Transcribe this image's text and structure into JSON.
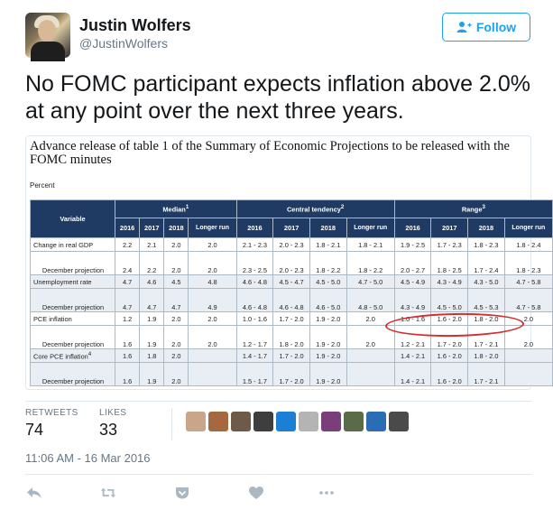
{
  "user": {
    "name": "Justin Wolfers",
    "handle": "@JustinWolfers"
  },
  "follow": {
    "label": "Follow",
    "icon": "follow-person-plus-icon",
    "color": "#1da1f2"
  },
  "tweet": {
    "text": "No FOMC participant expects inflation above 2.0% at any point over the next three years."
  },
  "embed": {
    "title": "Advance release of table 1 of the Summary of Economic Projections to be released with the FOMC minutes",
    "percent_label": "Percent",
    "header_color": "#1f3b63",
    "table": {
      "variable_header": "Variable",
      "groups": [
        "Median",
        "Central tendency",
        "Range"
      ],
      "group_sups": [
        "1",
        "2",
        "3"
      ],
      "years": [
        "2016",
        "2017",
        "2018",
        "Longer run"
      ],
      "rows": [
        {
          "label": "Change in real GDP",
          "vals": [
            "2.2",
            "2.1",
            "2.0",
            "2.0",
            "2.1 - 2.3",
            "2.0 - 2.3",
            "1.8 - 2.1",
            "1.8 - 2.1",
            "1.9 - 2.5",
            "1.7 - 2.3",
            "1.8 - 2.3",
            "1.8 - 2.4"
          ]
        },
        {
          "label": "December projection",
          "vals": [
            "2.4",
            "2.2",
            "2.0",
            "2.0",
            "2.3 - 2.5",
            "2.0 - 2.3",
            "1.8 - 2.2",
            "1.8 - 2.2",
            "2.0 - 2.7",
            "1.8 - 2.5",
            "1.7 - 2.4",
            "1.8 - 2.3"
          ]
        },
        {
          "label": "Unemployment rate",
          "vals": [
            "4.7",
            "4.6",
            "4.5",
            "4.8",
            "4.6 - 4.8",
            "4.5 - 4.7",
            "4.5 - 5.0",
            "4.7 - 5.0",
            "4.5 - 4.9",
            "4.3 - 4.9",
            "4.3 - 5.0",
            "4.7 - 5.8"
          ]
        },
        {
          "label": "December projection",
          "vals": [
            "4.7",
            "4.7",
            "4.7",
            "4.9",
            "4.6 - 4.8",
            "4.6 - 4.8",
            "4.6 - 5.0",
            "4.8 - 5.0",
            "4.3 - 4.9",
            "4.5 - 5.0",
            "4.5 - 5.3",
            "4.7 - 5.8"
          ]
        },
        {
          "label": "PCE inflation",
          "vals": [
            "1.2",
            "1.9",
            "2.0",
            "2.0",
            "1.0 - 1.6",
            "1.7 - 2.0",
            "1.9 - 2.0",
            "2.0",
            "1.0 - 1.6",
            "1.6 - 2.0",
            "1.8 - 2.0",
            "2.0"
          ]
        },
        {
          "label": "December projection",
          "vals": [
            "1.6",
            "1.9",
            "2.0",
            "2.0",
            "1.2 - 1.7",
            "1.8 - 2.0",
            "1.9 - 2.0",
            "2.0",
            "1.2 - 2.1",
            "1.7 - 2.0",
            "1.7 - 2.1",
            "2.0"
          ]
        },
        {
          "label": "Core PCE inflation",
          "sup": "4",
          "vals": [
            "1.6",
            "1.8",
            "2.0",
            "",
            "1.4 - 1.7",
            "1.7 - 2.0",
            "1.9 - 2.0",
            "",
            "1.4 - 2.1",
            "1.6 - 2.0",
            "1.8 - 2.0",
            ""
          ]
        },
        {
          "label": "December projection",
          "vals": [
            "1.6",
            "1.9",
            "2.0",
            "",
            "1.5 - 1.7",
            "1.7 - 2.0",
            "1.9 - 2.0",
            "",
            "1.4 - 2.1",
            "1.6 - 2.0",
            "1.7 - 2.1",
            ""
          ]
        }
      ]
    },
    "annotation_color": "#d23030"
  },
  "stats": {
    "retweets_label": "RETWEETS",
    "retweets_value": "74",
    "likes_label": "LIKES",
    "likes_value": "33"
  },
  "likers": [
    "#c9a58a",
    "#a6683f",
    "#6f5a4a",
    "#3e3e3e",
    "#1b7fd6",
    "#b4b4b4",
    "#7a3f7a",
    "#5a6b4a",
    "#2a6db5",
    "#4a4a4a"
  ],
  "timestamp": "11:06 AM - 16 Mar 2016",
  "actions": [
    "reply-icon",
    "retweet-icon",
    "save-icon",
    "like-icon",
    "more-icon"
  ]
}
